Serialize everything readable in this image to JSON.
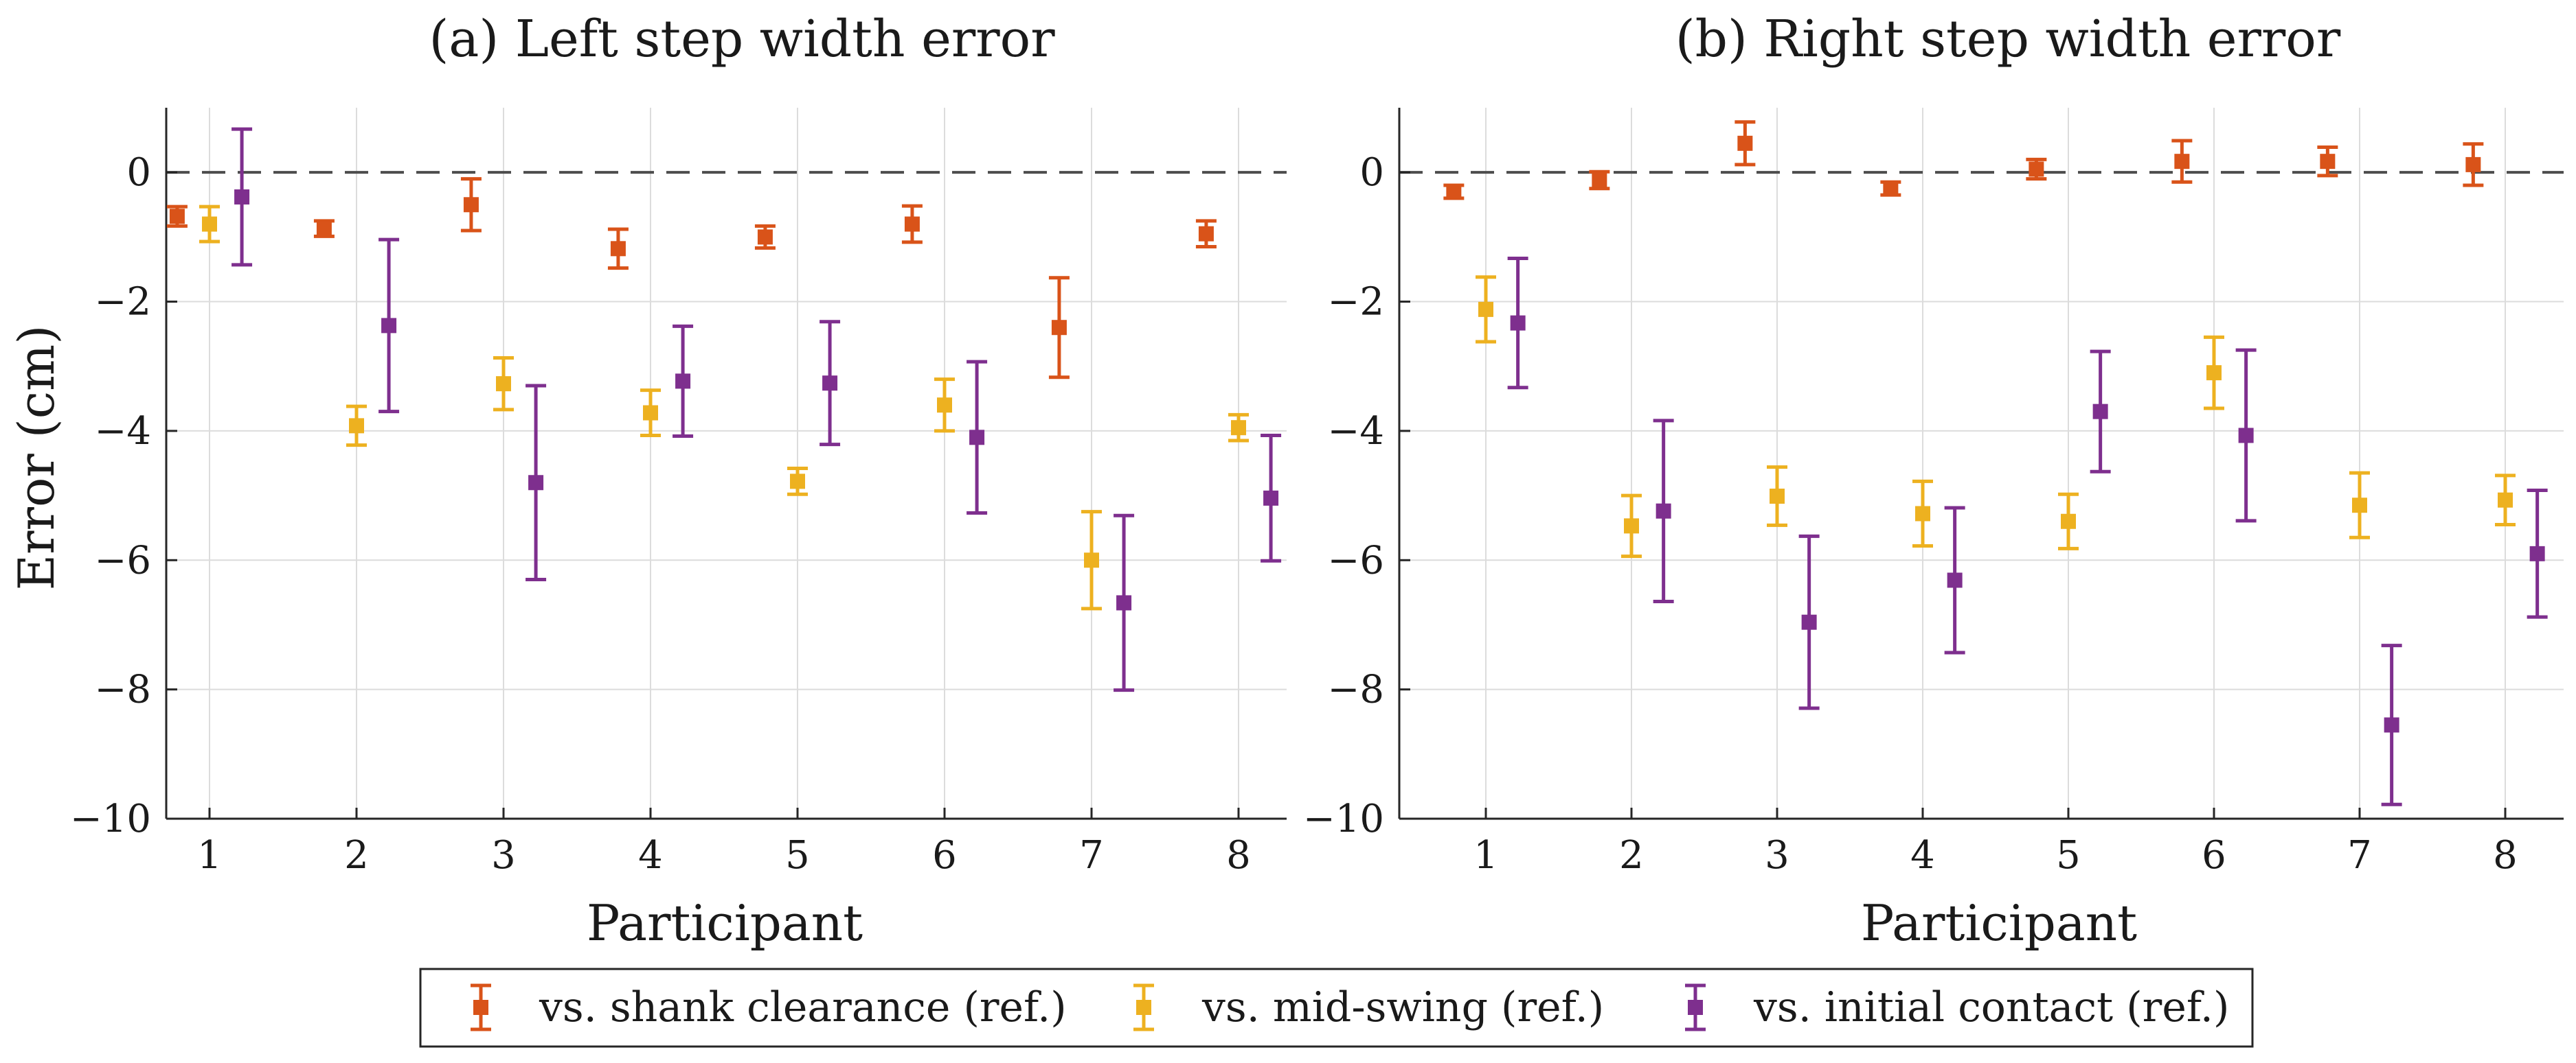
{
  "chart_data": {
    "type": "errorbar",
    "ylabel": "Error (cm)",
    "ylim": [
      -10,
      1
    ],
    "yticks": [
      0,
      -2,
      -4,
      -6,
      -8,
      -10
    ],
    "ytick_labels": [
      "0",
      "−2",
      "−4",
      "−6",
      "−8",
      "−10"
    ],
    "xlabel": "Participant",
    "categories": [
      "1",
      "2",
      "3",
      "4",
      "5",
      "6",
      "7",
      "8"
    ],
    "reference_line": 0,
    "grid": true,
    "legend": {
      "placement": "bottom-center",
      "entries": [
        {
          "label": "vs. shank clearance (ref.)",
          "color": "#d95319"
        },
        {
          "label": "vs. mid-swing (ref.)",
          "color": "#edb120"
        },
        {
          "label": "vs. initial contact (ref.)",
          "color": "#7e2f8e"
        }
      ]
    },
    "panels": [
      {
        "title": "(a) Left step width error",
        "series": [
          {
            "name": "vs. shank clearance (ref.)",
            "color": "#d95319",
            "mean": [
              -0.68,
              -0.87,
              -0.5,
              -1.18,
              -1.0,
              -0.8,
              -2.4,
              -0.95
            ],
            "err": [
              0.15,
              0.12,
              0.4,
              0.3,
              0.17,
              0.28,
              0.77,
              0.2
            ]
          },
          {
            "name": "vs. mid-swing (ref.)",
            "color": "#edb120",
            "mean": [
              -0.8,
              -3.92,
              -3.27,
              -3.72,
              -4.78,
              -3.6,
              -6.0,
              -3.95
            ],
            "err": [
              0.27,
              0.3,
              0.4,
              0.35,
              0.2,
              0.4,
              0.75,
              0.2
            ]
          },
          {
            "name": "vs. initial contact (ref.)",
            "color": "#7e2f8e",
            "mean": [
              -0.38,
              -2.37,
              -4.8,
              -3.23,
              -3.26,
              -4.1,
              -6.66,
              -5.04
            ],
            "err": [
              1.05,
              1.33,
              1.5,
              0.85,
              0.95,
              1.17,
              1.35,
              0.97
            ]
          }
        ]
      },
      {
        "title": "(b) Right step width error",
        "series": [
          {
            "name": "vs. shank clearance (ref.)",
            "color": "#d95319",
            "mean": [
              -0.3,
              -0.12,
              0.45,
              -0.25,
              0.05,
              0.17,
              0.17,
              0.12
            ],
            "err": [
              0.1,
              0.13,
              0.33,
              0.1,
              0.15,
              0.32,
              0.22,
              0.32
            ]
          },
          {
            "name": "vs. mid-swing (ref.)",
            "color": "#edb120",
            "mean": [
              -2.12,
              -5.47,
              -5.01,
              -5.28,
              -5.4,
              -3.1,
              -5.15,
              -5.07
            ],
            "err": [
              0.5,
              0.47,
              0.45,
              0.5,
              0.42,
              0.55,
              0.5,
              0.38
            ]
          },
          {
            "name": "vs. initial contact (ref.)",
            "color": "#7e2f8e",
            "mean": [
              -2.33,
              -5.24,
              -6.96,
              -6.31,
              -3.7,
              -4.07,
              -8.55,
              -5.9
            ],
            "err": [
              1.0,
              1.4,
              1.33,
              1.12,
              0.93,
              1.32,
              1.23,
              0.98
            ]
          }
        ]
      }
    ]
  }
}
